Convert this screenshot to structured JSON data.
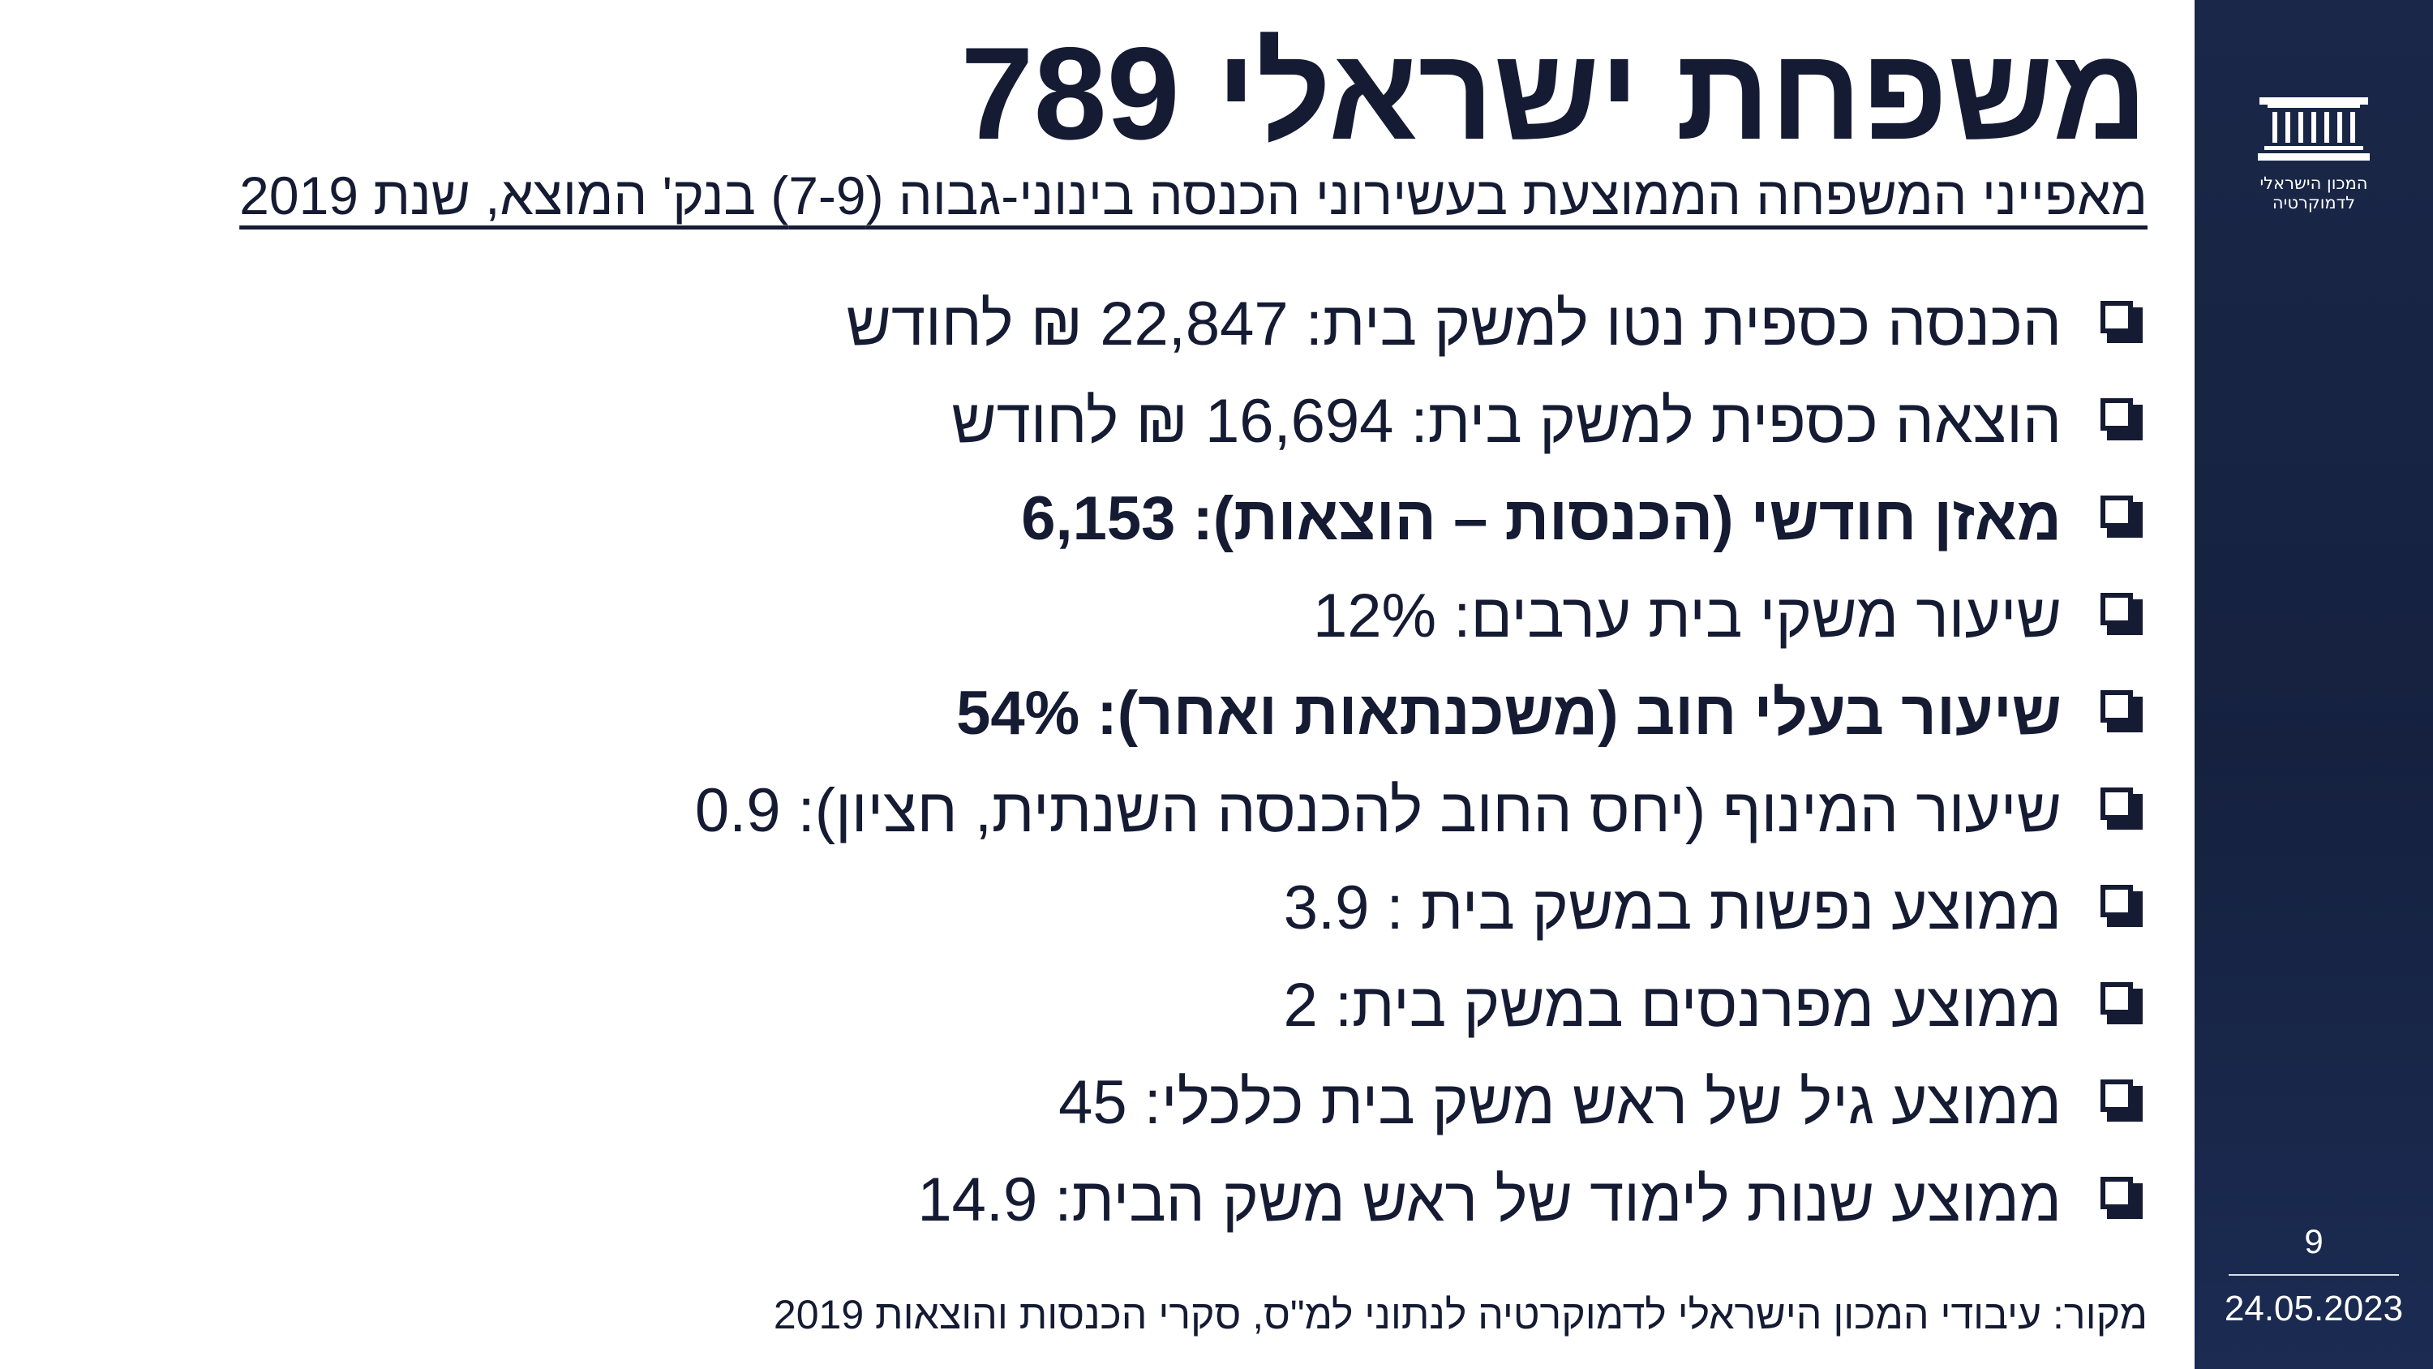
{
  "slide": {
    "title": "משפחת ישראלי 789",
    "subtitle": "מאפייני המשפחה הממוצעת בעשירוני הכנסה בינוני-גבוה (7-9) בנק' המוצא, שנת 2019",
    "bullets": [
      {
        "text": "הכנסה כספית נטו למשק בית: 22,847 ₪ לחודש",
        "bold": false
      },
      {
        "text": "הוצאה כספית למשק בית: 16,694 ₪ לחודש",
        "bold": false
      },
      {
        "text": "מאזן חודשי (הכנסות – הוצאות): 6,153",
        "bold": true
      },
      {
        "text": "שיעור משקי בית ערבים: 12%",
        "bold": false
      },
      {
        "text": "שיעור בעלי חוב (משכנתאות ואחר): 54%",
        "bold": true
      },
      {
        "text": "שיעור המינוף (יחס החוב להכנסה השנתית, חציון): 0.9",
        "bold": false
      },
      {
        "text": "ממוצע נפשות במשק בית : 3.9",
        "bold": false
      },
      {
        "text": "ממוצע מפרנסים במשק בית: 2",
        "bold": false
      },
      {
        "text": "ממוצע גיל של ראש משק בית כלכלי: 45",
        "bold": false
      },
      {
        "text": "ממוצע שנות לימוד של ראש משק הבית: 14.9",
        "bold": false
      }
    ],
    "source": "מקור: עיבודי המכון הישראלי לדמוקרטיה לנתוני למ\"ס, סקרי הכנסות והוצאות 2019"
  },
  "sidebar": {
    "logo_icon": "parliament-columns-icon",
    "logo_text_line1": "המכון הישראלי",
    "logo_text_line2": "לדמוקרטיה",
    "page_number": "9",
    "date": "24.05.2023",
    "colors": {
      "background": "#1a2748",
      "text": "#ffffff"
    }
  },
  "colors": {
    "text": "#151b33",
    "background": "#ffffff"
  }
}
